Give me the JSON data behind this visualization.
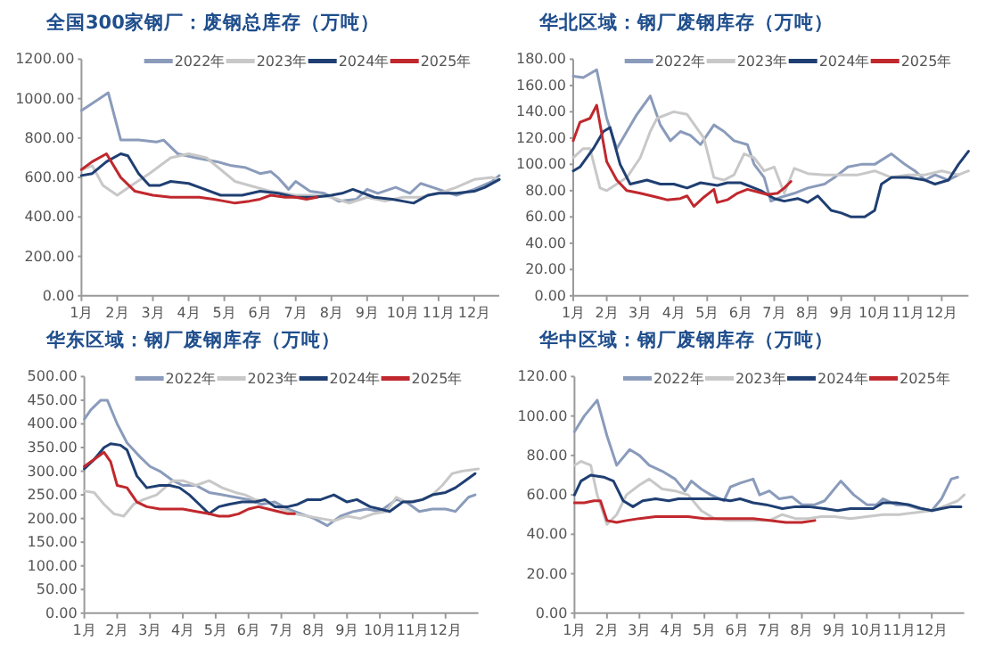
{
  "chart_data": [
    {
      "type": "line",
      "title": "全国300家钢厂：废钢总库存（万吨）",
      "xlim": [
        1,
        12.7
      ],
      "xticks": [
        {
          "value": 1,
          "label": "1月"
        },
        {
          "value": 2,
          "label": "2月"
        },
        {
          "value": 3,
          "label": "3月"
        },
        {
          "value": 4,
          "label": "4月"
        },
        {
          "value": 5,
          "label": "5月"
        },
        {
          "value": 6,
          "label": "6月"
        },
        {
          "value": 7,
          "label": "7月"
        },
        {
          "value": 8,
          "label": "8月"
        },
        {
          "value": 9,
          "label": "9月"
        },
        {
          "value": 10,
          "label": "10月"
        },
        {
          "value": 11,
          "label": "11月"
        },
        {
          "value": 12,
          "label": "12月"
        }
      ],
      "ylim": [
        0,
        1200
      ],
      "yticks": [
        {
          "value": 0,
          "label": "0.00"
        },
        {
          "value": 200,
          "label": "200.00"
        },
        {
          "value": 400,
          "label": "400.00"
        },
        {
          "value": 600,
          "label": "600.00"
        },
        {
          "value": 800,
          "label": "800.00"
        },
        {
          "value": 1000,
          "label": "1000.00"
        },
        {
          "value": 1200,
          "label": "1200.00"
        }
      ],
      "legend": "top",
      "series": [
        {
          "name": "2022年",
          "color": "#8a9bbb",
          "x": [
            1,
            1.5,
            1.75,
            2.1,
            2.6,
            3.1,
            3.3,
            3.7,
            4.2,
            4.8,
            5.2,
            5.6,
            6.0,
            6.3,
            6.5,
            6.8,
            7.0,
            7.4,
            7.8,
            8.2,
            8.7,
            9.0,
            9.3,
            9.8,
            10.2,
            10.5,
            11.0,
            11.5,
            12.0,
            12.5,
            12.7
          ],
          "values": [
            940,
            1000,
            1030,
            790,
            790,
            780,
            790,
            720,
            700,
            680,
            660,
            650,
            620,
            630,
            600,
            540,
            580,
            530,
            520,
            480,
            490,
            540,
            520,
            550,
            520,
            570,
            540,
            510,
            540,
            580,
            610
          ]
        },
        {
          "name": "2023年",
          "color": "#c8c8c8",
          "x": [
            1,
            1.3,
            1.6,
            2.0,
            2.4,
            2.9,
            3.5,
            4.0,
            4.5,
            4.9,
            5.3,
            5.7,
            6.3,
            7.0,
            7.5,
            8.0,
            8.5,
            9.0,
            9.5,
            10.0,
            10.5,
            11.0,
            11.5,
            12.0,
            12.5,
            12.7
          ],
          "values": [
            640,
            660,
            560,
            510,
            560,
            620,
            700,
            720,
            700,
            640,
            580,
            560,
            530,
            510,
            510,
            500,
            470,
            500,
            480,
            500,
            500,
            520,
            550,
            590,
            600,
            590
          ]
        },
        {
          "name": "2024年",
          "color": "#1f3f72",
          "x": [
            1,
            1.3,
            1.7,
            2.1,
            2.3,
            2.6,
            2.9,
            3.2,
            3.5,
            4.0,
            4.3,
            4.9,
            5.5,
            6.0,
            6.5,
            7.0,
            7.5,
            8.0,
            8.3,
            8.6,
            9.2,
            9.7,
            10.0,
            10.3,
            10.7,
            11.0,
            11.5,
            12.0,
            12.3,
            12.7
          ],
          "values": [
            610,
            620,
            680,
            720,
            710,
            620,
            560,
            560,
            580,
            570,
            550,
            510,
            510,
            530,
            520,
            500,
            500,
            510,
            520,
            540,
            500,
            490,
            480,
            470,
            510,
            520,
            520,
            530,
            550,
            590
          ]
        },
        {
          "name": "2025年",
          "color": "#c0282d",
          "x": [
            1,
            1.3,
            1.7,
            2.1,
            2.5,
            3.0,
            3.5,
            4.0,
            4.3,
            4.7,
            5.0,
            5.3,
            5.7,
            6.0,
            6.3,
            6.7,
            7.0,
            7.3,
            7.6
          ],
          "values": [
            640,
            680,
            720,
            600,
            530,
            510,
            500,
            500,
            500,
            490,
            480,
            470,
            480,
            490,
            510,
            500,
            500,
            490,
            500
          ]
        }
      ]
    },
    {
      "type": "line",
      "title": "华北区域：钢厂废钢库存（万吨）",
      "xlim": [
        1,
        12.8
      ],
      "xticks": [
        {
          "value": 1,
          "label": "1月"
        },
        {
          "value": 2,
          "label": "2月"
        },
        {
          "value": 3,
          "label": "3月"
        },
        {
          "value": 4,
          "label": "4月"
        },
        {
          "value": 5,
          "label": "5月"
        },
        {
          "value": 6,
          "label": "6月"
        },
        {
          "value": 7,
          "label": "7月"
        },
        {
          "value": 8,
          "label": "8月"
        },
        {
          "value": 9,
          "label": "9月"
        },
        {
          "value": 10,
          "label": "10月"
        },
        {
          "value": 11,
          "label": "11月"
        },
        {
          "value": 12,
          "label": "12月"
        }
      ],
      "ylim": [
        0,
        180
      ],
      "yticks": [
        {
          "value": 0,
          "label": "0.00"
        },
        {
          "value": 20,
          "label": "20.00"
        },
        {
          "value": 40,
          "label": "40.00"
        },
        {
          "value": 60,
          "label": "60.00"
        },
        {
          "value": 80,
          "label": "80.00"
        },
        {
          "value": 100,
          "label": "100.00"
        },
        {
          "value": 120,
          "label": "120.00"
        },
        {
          "value": 140,
          "label": "140.00"
        },
        {
          "value": 160,
          "label": "160.00"
        },
        {
          "value": 180,
          "label": "180.00"
        }
      ],
      "legend": "top",
      "series": [
        {
          "name": "2022年",
          "color": "#8a9bbb",
          "x": [
            1,
            1.3,
            1.7,
            2.0,
            2.3,
            2.6,
            2.9,
            3.1,
            3.3,
            3.6,
            3.9,
            4.2,
            4.5,
            4.8,
            5.2,
            5.5,
            5.8,
            6.2,
            6.4,
            6.7,
            6.9,
            7.2,
            7.6,
            8.0,
            8.5,
            8.8,
            9.2,
            9.6,
            10.0,
            10.5,
            10.9,
            11.2,
            11.5,
            11.8,
            12.2,
            12.5
          ],
          "values": [
            167,
            166,
            172,
            135,
            112,
            125,
            138,
            145,
            152,
            130,
            118,
            125,
            122,
            115,
            130,
            125,
            118,
            115,
            100,
            90,
            72,
            75,
            78,
            82,
            85,
            90,
            98,
            100,
            100,
            108,
            100,
            95,
            88,
            92,
            88,
            92
          ]
        },
        {
          "name": "2023年",
          "color": "#c8c8c8",
          "x": [
            1,
            1.3,
            1.5,
            1.8,
            2.0,
            2.3,
            2.6,
            3.0,
            3.3,
            3.5,
            4.0,
            4.4,
            4.9,
            5.2,
            5.5,
            5.8,
            6.1,
            6.4,
            6.7,
            7.0,
            7.3,
            7.6,
            8.0,
            8.5,
            9.0,
            9.5,
            10.0,
            10.5,
            11.0,
            11.5,
            12.0,
            12.5,
            12.8
          ],
          "values": [
            105,
            112,
            112,
            82,
            80,
            85,
            90,
            105,
            125,
            135,
            140,
            138,
            120,
            90,
            88,
            92,
            108,
            105,
            95,
            98,
            78,
            97,
            93,
            92,
            92,
            92,
            95,
            90,
            92,
            92,
            95,
            92,
            95
          ]
        },
        {
          "name": "2024年",
          "color": "#1f3f72",
          "x": [
            1,
            1.2,
            1.6,
            1.9,
            2.1,
            2.4,
            2.7,
            3.2,
            3.6,
            4.0,
            4.4,
            4.8,
            5.3,
            5.6,
            6.0,
            6.3,
            6.6,
            7.0,
            7.3,
            7.7,
            8.0,
            8.3,
            8.7,
            9.0,
            9.3,
            9.7,
            10.0,
            10.2,
            10.5,
            11.0,
            11.5,
            11.8,
            12.2,
            12.5,
            12.8
          ],
          "values": [
            95,
            98,
            112,
            125,
            128,
            100,
            85,
            88,
            85,
            85,
            82,
            86,
            84,
            86,
            86,
            83,
            80,
            74,
            72,
            74,
            71,
            76,
            65,
            63,
            60,
            60,
            65,
            85,
            90,
            90,
            88,
            85,
            88,
            100,
            110
          ]
        },
        {
          "name": "2025年",
          "color": "#c0282d",
          "x": [
            1,
            1.2,
            1.5,
            1.7,
            2.0,
            2.3,
            2.6,
            3.0,
            3.5,
            3.8,
            4.2,
            4.4,
            4.6,
            4.9,
            5.2,
            5.3,
            5.6,
            5.9,
            6.2,
            6.5,
            6.8,
            7.1,
            7.3,
            7.5
          ],
          "values": [
            118,
            132,
            135,
            145,
            102,
            88,
            80,
            78,
            75,
            73,
            74,
            76,
            68,
            75,
            81,
            71,
            73,
            78,
            81,
            79,
            77,
            78,
            82,
            87
          ]
        }
      ]
    },
    {
      "type": "line",
      "title": "华东区域：钢厂废钢库存（万吨）",
      "xlim": [
        1,
        13
      ],
      "xticks": [
        {
          "value": 1,
          "label": "1月"
        },
        {
          "value": 2,
          "label": "2月"
        },
        {
          "value": 3,
          "label": "3月"
        },
        {
          "value": 4,
          "label": "4月"
        },
        {
          "value": 5,
          "label": "5月"
        },
        {
          "value": 6,
          "label": "6月"
        },
        {
          "value": 7,
          "label": "7月"
        },
        {
          "value": 8,
          "label": "8月"
        },
        {
          "value": 9,
          "label": "9月"
        },
        {
          "value": 10,
          "label": "10月"
        },
        {
          "value": 11,
          "label": "11月"
        },
        {
          "value": 12,
          "label": "12月"
        }
      ],
      "ylim": [
        0,
        500
      ],
      "yticks": [
        {
          "value": 0,
          "label": "0.00"
        },
        {
          "value": 50,
          "label": "50.00"
        },
        {
          "value": 100,
          "label": "100.00"
        },
        {
          "value": 150,
          "label": "150.00"
        },
        {
          "value": 200,
          "label": "200.00"
        },
        {
          "value": 250,
          "label": "250.00"
        },
        {
          "value": 300,
          "label": "300.00"
        },
        {
          "value": 350,
          "label": "350.00"
        },
        {
          "value": 400,
          "label": "400.00"
        },
        {
          "value": 450,
          "label": "450.00"
        },
        {
          "value": 500,
          "label": "500.00"
        }
      ],
      "legend": "top",
      "series": [
        {
          "name": "2022年",
          "color": "#8a9bbb",
          "x": [
            1,
            1.2,
            1.5,
            1.7,
            2.0,
            2.3,
            2.7,
            3.0,
            3.3,
            3.7,
            4.0,
            4.4,
            4.8,
            5.2,
            5.6,
            6.0,
            6.4,
            6.8,
            7.2,
            7.6,
            8.0,
            8.4,
            8.8,
            9.2,
            9.6,
            10.0,
            10.5,
            10.8,
            11.2,
            11.6,
            12.0,
            12.3,
            12.7,
            12.9
          ],
          "values": [
            410,
            430,
            450,
            450,
            400,
            360,
            330,
            310,
            300,
            280,
            270,
            270,
            255,
            250,
            245,
            240,
            230,
            235,
            220,
            210,
            200,
            185,
            205,
            215,
            220,
            215,
            240,
            235,
            215,
            220,
            220,
            215,
            245,
            250
          ]
        },
        {
          "name": "2023年",
          "color": "#c8c8c8",
          "x": [
            1,
            1.3,
            1.6,
            1.9,
            2.2,
            2.5,
            2.8,
            3.2,
            3.7,
            4.0,
            4.4,
            4.8,
            5.2,
            5.6,
            5.9,
            6.2,
            6.6,
            7.0,
            7.4,
            7.8,
            8.2,
            8.6,
            9.0,
            9.4,
            9.8,
            10.2,
            10.5,
            10.8,
            11.3,
            11.6,
            11.9,
            12.2,
            12.5,
            13.0
          ],
          "values": [
            258,
            255,
            230,
            210,
            205,
            230,
            240,
            250,
            280,
            280,
            270,
            280,
            265,
            255,
            250,
            240,
            235,
            220,
            210,
            205,
            200,
            195,
            205,
            200,
            210,
            215,
            245,
            235,
            240,
            250,
            270,
            295,
            300,
            305
          ]
        },
        {
          "name": "2024年",
          "color": "#1f3f72",
          "x": [
            1,
            1.3,
            1.6,
            1.8,
            2.1,
            2.3,
            2.6,
            2.9,
            3.3,
            3.6,
            3.9,
            4.2,
            4.5,
            4.8,
            5.1,
            5.4,
            5.8,
            6.2,
            6.5,
            6.8,
            7.2,
            7.5,
            7.8,
            8.2,
            8.6,
            9.0,
            9.3,
            9.7,
            10.0,
            10.3,
            10.7,
            11.0,
            11.3,
            11.6,
            12.0,
            12.3,
            12.6,
            12.9
          ],
          "values": [
            305,
            325,
            350,
            358,
            355,
            345,
            290,
            265,
            270,
            270,
            265,
            250,
            230,
            210,
            225,
            230,
            235,
            235,
            240,
            225,
            225,
            230,
            240,
            240,
            250,
            235,
            240,
            225,
            220,
            215,
            235,
            235,
            240,
            250,
            255,
            265,
            280,
            295
          ]
        },
        {
          "name": "2025年",
          "color": "#c0282d",
          "x": [
            1,
            1.3,
            1.6,
            1.8,
            2.0,
            2.3,
            2.6,
            2.9,
            3.3,
            3.6,
            4.0,
            4.4,
            4.8,
            5.1,
            5.4,
            5.7,
            6.0,
            6.3,
            6.6,
            6.9,
            7.2,
            7.4
          ],
          "values": [
            310,
            325,
            340,
            320,
            270,
            265,
            235,
            225,
            220,
            220,
            220,
            215,
            210,
            205,
            205,
            210,
            220,
            225,
            220,
            215,
            210,
            210
          ]
        }
      ]
    },
    {
      "type": "line",
      "title": "华中区域：钢厂废钢库存（万吨）",
      "xlim": [
        1,
        13
      ],
      "xticks": [
        {
          "value": 1,
          "label": "1月"
        },
        {
          "value": 2,
          "label": "2月"
        },
        {
          "value": 3,
          "label": "3月"
        },
        {
          "value": 4,
          "label": "4月"
        },
        {
          "value": 5,
          "label": "5月"
        },
        {
          "value": 6,
          "label": "6月"
        },
        {
          "value": 7,
          "label": "7月"
        },
        {
          "value": 8,
          "label": "8月"
        },
        {
          "value": 9,
          "label": "9月"
        },
        {
          "value": 10,
          "label": "10月"
        },
        {
          "value": 11,
          "label": "11月"
        },
        {
          "value": 12,
          "label": "12月"
        }
      ],
      "ylim": [
        0,
        120
      ],
      "yticks": [
        {
          "value": 0,
          "label": "0.00"
        },
        {
          "value": 20,
          "label": "20.00"
        },
        {
          "value": 40,
          "label": "40.00"
        },
        {
          "value": 60,
          "label": "60.00"
        },
        {
          "value": 80,
          "label": "80.00"
        },
        {
          "value": 100,
          "label": "100.00"
        },
        {
          "value": 120,
          "label": "120.00"
        }
      ],
      "legend": "top",
      "series": [
        {
          "name": "2022年",
          "color": "#8a9bbb",
          "x": [
            1,
            1.3,
            1.6,
            1.7,
            2.0,
            2.3,
            2.7,
            3.0,
            3.3,
            3.7,
            4.1,
            4.4,
            4.6,
            4.9,
            5.2,
            5.6,
            5.8,
            6.1,
            6.5,
            6.7,
            7.0,
            7.3,
            7.7,
            8.0,
            8.4,
            8.7,
            9.2,
            9.6,
            10.0,
            10.3,
            10.5,
            10.9,
            11.2,
            11.6,
            12.0,
            12.3,
            12.6,
            12.8
          ],
          "values": [
            92,
            100,
            106,
            108,
            90,
            75,
            83,
            80,
            75,
            72,
            68,
            62,
            67,
            63,
            60,
            57,
            64,
            66,
            68,
            60,
            62,
            58,
            59,
            55,
            55,
            57,
            67,
            60,
            55,
            55,
            58,
            55,
            55,
            53,
            52,
            58,
            68,
            69
          ]
        },
        {
          "name": "2023年",
          "color": "#c8c8c8",
          "x": [
            1,
            1.2,
            1.5,
            1.7,
            2.0,
            2.3,
            2.6,
            3.0,
            3.3,
            3.7,
            4.1,
            4.5,
            4.9,
            5.3,
            5.7,
            6.0,
            6.5,
            7.0,
            7.4,
            7.8,
            8.2,
            8.6,
            9.0,
            9.5,
            10.0,
            10.5,
            11.0,
            11.5,
            12.0,
            12.5,
            12.8,
            13.0
          ],
          "values": [
            75,
            77,
            75,
            60,
            45,
            50,
            60,
            65,
            68,
            63,
            62,
            60,
            52,
            48,
            47,
            47,
            47,
            47,
            50,
            48,
            48,
            49,
            49,
            48,
            49,
            50,
            50,
            51,
            52,
            55,
            57,
            60
          ]
        },
        {
          "name": "2024年",
          "color": "#1f3f72",
          "x": [
            1,
            1.2,
            1.5,
            1.9,
            2.2,
            2.5,
            2.8,
            3.1,
            3.5,
            3.9,
            4.2,
            4.6,
            5.0,
            5.4,
            5.8,
            6.1,
            6.5,
            6.9,
            7.4,
            7.8,
            8.2,
            8.7,
            9.1,
            9.5,
            9.9,
            10.2,
            10.5,
            10.9,
            11.3,
            11.7,
            12.0,
            12.3,
            12.6,
            12.9
          ],
          "values": [
            60,
            67,
            70,
            69,
            67,
            57,
            54,
            57,
            58,
            57,
            58,
            58,
            58,
            58,
            57,
            58,
            56,
            55,
            53,
            54,
            54,
            53,
            52,
            53,
            53,
            53,
            56,
            56,
            55,
            53,
            52,
            53,
            54,
            54
          ]
        },
        {
          "name": "2025年",
          "color": "#c0282d",
          "x": [
            1,
            1.3,
            1.6,
            1.8,
            2.0,
            2.3,
            2.6,
            3.0,
            3.5,
            3.8,
            4.2,
            4.5,
            5.0,
            5.5,
            6.0,
            6.5,
            7.0,
            7.5,
            8.0,
            8.4
          ],
          "values": [
            56,
            56,
            57,
            57,
            47,
            46,
            47,
            48,
            49,
            49,
            49,
            49,
            48,
            48,
            48,
            48,
            47,
            46,
            46,
            47
          ]
        }
      ]
    }
  ]
}
